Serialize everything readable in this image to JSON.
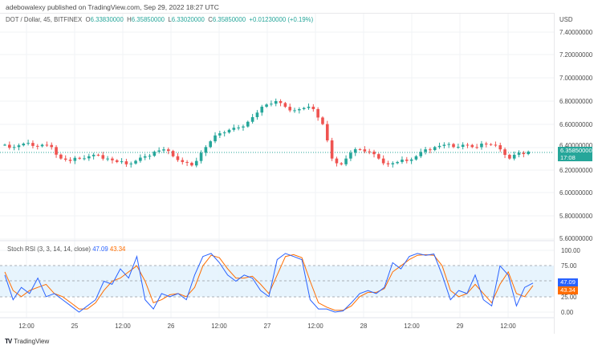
{
  "header": {
    "published": "adebowalexy published on TradingView.com, Sep 29, 2022 18:27 UTC"
  },
  "legend": {
    "symbol": "DOT / Dollar, 45, BITFINEX",
    "open_label": "O",
    "open": "6.33830000",
    "high_label": "H",
    "high": "6.35850000",
    "low_label": "L",
    "low": "6.33020000",
    "close_label": "C",
    "close": "6.35850000",
    "change": "+0.01230000 (+0.19%)"
  },
  "price_axis": {
    "currency": "USD",
    "ticks": [
      "7.40000000",
      "7.20000000",
      "7.00000000",
      "6.80000000",
      "6.60000000",
      "6.40000000",
      "6.20000000",
      "6.00000000",
      "5.80000000",
      "5.60000000"
    ],
    "current_price": "6.35850000",
    "countdown": "17:08"
  },
  "rsi": {
    "title": "Stoch RSI (3, 3, 14, 14, close)",
    "k_value": "47.09",
    "d_value": "43.34",
    "ticks": [
      "100.00",
      "75.00",
      "25.00",
      "0.00"
    ]
  },
  "time_axis": {
    "labels": [
      "12:00",
      "25",
      "12:00",
      "26",
      "12:00",
      "27",
      "12:00",
      "28",
      "12:00",
      "29",
      "12:00"
    ]
  },
  "footer": {
    "brand": "TradingView",
    "mark": "TV"
  },
  "colors": {
    "up": "#26a69a",
    "down": "#ef5350",
    "k_line": "#2962ff",
    "d_line": "#ff6d00",
    "band": "#e3f2fd"
  },
  "chart_data": [
    {
      "type": "candlestick",
      "title": "DOT / Dollar, 45, BITFINEX",
      "ylabel": "USD",
      "ylim": [
        5.6,
        7.4
      ],
      "x_labels": [
        "12:00",
        "25",
        "12:00",
        "26",
        "12:00",
        "27",
        "12:00",
        "28",
        "12:00",
        "29",
        "12:00"
      ],
      "current_price": 6.3585,
      "approx_close_path": [
        6.42,
        6.4,
        6.43,
        6.41,
        6.42,
        6.4,
        6.3,
        6.28,
        6.3,
        6.32,
        6.33,
        6.3,
        6.27,
        6.25,
        6.28,
        6.32,
        6.36,
        6.38,
        6.32,
        6.27,
        6.24,
        6.35,
        6.45,
        6.52,
        6.55,
        6.57,
        6.62,
        6.7,
        6.77,
        6.8,
        6.75,
        6.72,
        6.74,
        6.73,
        6.6,
        6.3,
        6.25,
        6.35,
        6.38,
        6.36,
        6.3,
        6.25,
        6.27,
        6.28,
        6.32,
        6.38,
        6.4,
        6.42,
        6.4,
        6.42,
        6.4,
        6.43,
        6.42,
        6.38,
        6.3,
        6.35,
        6.36
      ],
      "ohlc_last": {
        "open": 6.3383,
        "high": 6.3585,
        "low": 6.3302,
        "close": 6.3585,
        "change": 0.0123,
        "change_pct": 0.19
      }
    },
    {
      "type": "line",
      "title": "Stoch RSI (3, 3, 14, 14, close)",
      "ylim": [
        0,
        100
      ],
      "bands": [
        25,
        50,
        75
      ],
      "series": [
        {
          "name": "%K",
          "last": 47.09,
          "values": [
            60,
            20,
            40,
            30,
            55,
            25,
            30,
            20,
            10,
            0,
            10,
            20,
            50,
            45,
            70,
            55,
            90,
            20,
            5,
            30,
            25,
            30,
            20,
            60,
            90,
            95,
            80,
            60,
            50,
            60,
            55,
            35,
            25,
            85,
            95,
            90,
            85,
            20,
            5,
            5,
            0,
            2,
            15,
            30,
            35,
            30,
            40,
            80,
            70,
            90,
            95,
            92,
            94,
            60,
            20,
            35,
            30,
            60,
            20,
            10,
            75,
            60,
            10,
            40,
            47
          ]
        },
        {
          "name": "%D",
          "last": 43.34,
          "values": [
            65,
            35,
            25,
            35,
            40,
            45,
            30,
            25,
            15,
            5,
            5,
            15,
            35,
            50,
            55,
            65,
            75,
            50,
            15,
            20,
            28,
            30,
            25,
            40,
            75,
            92,
            88,
            70,
            55,
            55,
            58,
            45,
            30,
            60,
            90,
            93,
            88,
            50,
            15,
            8,
            3,
            3,
            10,
            25,
            32,
            32,
            38,
            65,
            75,
            85,
            92,
            93,
            92,
            75,
            35,
            25,
            30,
            45,
            30,
            15,
            45,
            65,
            30,
            25,
            43
          ]
        }
      ]
    }
  ]
}
